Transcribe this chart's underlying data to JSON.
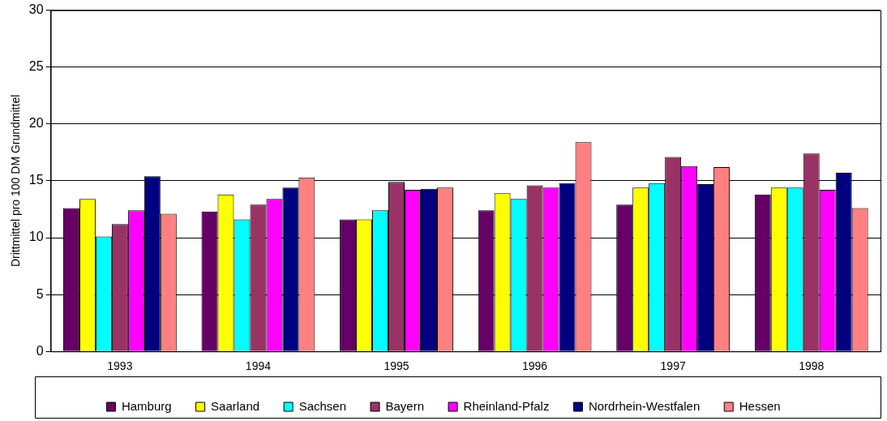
{
  "chart_data": {
    "type": "bar",
    "ylabel": "Drittmittel pro 100 DM Grundmittel",
    "categories": [
      "1993",
      "1994",
      "1995",
      "1996",
      "1997",
      "1998"
    ],
    "series": [
      {
        "name": "Hamburg",
        "color": "#660066",
        "values": [
          12.6,
          12.3,
          11.6,
          12.4,
          12.9,
          13.8
        ]
      },
      {
        "name": "Saarland",
        "color": "#ffff00",
        "values": [
          13.4,
          13.8,
          11.6,
          13.9,
          14.4,
          14.4
        ]
      },
      {
        "name": "Sachsen",
        "color": "#00ffff",
        "values": [
          10.1,
          11.6,
          12.4,
          13.4,
          14.8,
          14.4
        ]
      },
      {
        "name": "Bayern",
        "color": "#993366",
        "values": [
          11.2,
          12.9,
          14.9,
          14.6,
          17.1,
          17.4
        ]
      },
      {
        "name": "Rheinland-Pfalz",
        "color": "#ff00ff",
        "values": [
          12.4,
          13.4,
          14.2,
          14.4,
          16.3,
          14.2
        ]
      },
      {
        "name": "Nordrhein-Westfalen",
        "color": "#000080",
        "values": [
          15.4,
          14.4,
          14.3,
          14.8,
          14.7,
          15.7
        ]
      },
      {
        "name": "Hessen",
        "color": "#ff8080",
        "values": [
          12.1,
          15.3,
          14.4,
          18.4,
          16.2,
          12.6
        ]
      }
    ],
    "ylim": [
      0,
      30
    ],
    "yticks": [
      0,
      5,
      10,
      15,
      20,
      25,
      30
    ],
    "grid": "y",
    "legend": "bottom"
  }
}
